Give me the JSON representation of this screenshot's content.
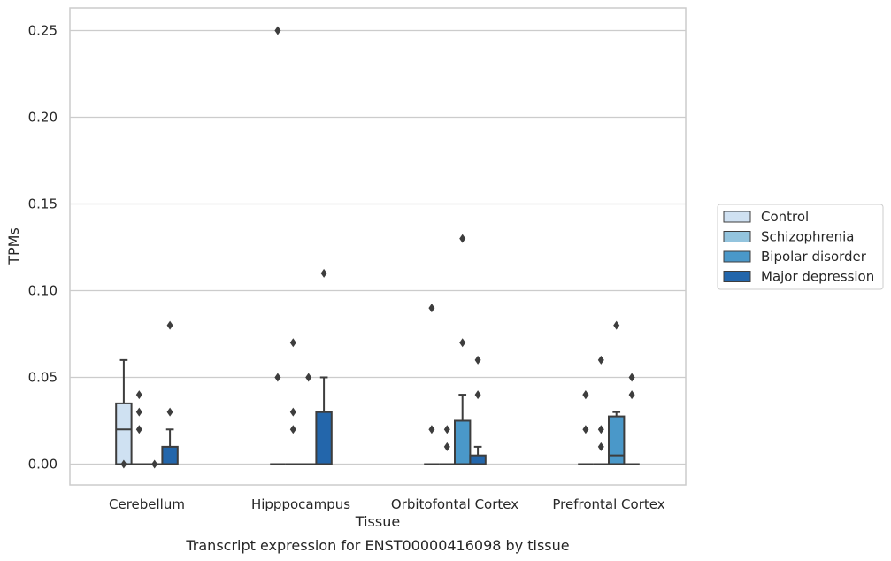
{
  "chart_data": {
    "type": "box",
    "xlabel": "Tissue",
    "ylabel": "TPMs",
    "caption": "Transcript expression for ENST00000416098 by tissue",
    "ylim": [
      -0.012,
      0.263
    ],
    "yticks": [
      0.0,
      0.05,
      0.1,
      0.15,
      0.2,
      0.25
    ],
    "ytick_labels": [
      "0.00",
      "0.05",
      "0.10",
      "0.15",
      "0.20",
      "0.25"
    ],
    "grid": true,
    "legend_position": "right",
    "categories": [
      "Cerebellum",
      "Hipppocampus",
      "Orbitofontal Cortex",
      "Prefrontal Cortex"
    ],
    "series": [
      {
        "name": "Control",
        "color": "#cfe1f2",
        "boxes": [
          {
            "q1": 0.0,
            "median": 0.02,
            "q3": 0.035,
            "whislo": 0.0,
            "whishi": 0.06,
            "fliers": [
              0.0
            ]
          },
          {
            "q1": 0.0,
            "median": 0.0,
            "q3": 0.0,
            "whislo": 0.0,
            "whishi": 0.0,
            "fliers": [
              0.25,
              0.05
            ]
          },
          {
            "q1": 0.0,
            "median": 0.0,
            "q3": 0.0,
            "whislo": 0.0,
            "whishi": 0.0,
            "fliers": [
              0.09,
              0.02
            ]
          },
          {
            "q1": 0.0,
            "median": 0.0,
            "q3": 0.0,
            "whislo": 0.0,
            "whishi": 0.0,
            "fliers": [
              0.04,
              0.04,
              0.02
            ]
          }
        ]
      },
      {
        "name": "Schizophrenia",
        "color": "#93c4de",
        "boxes": [
          {
            "q1": 0.0,
            "median": 0.0,
            "q3": 0.0,
            "whislo": 0.0,
            "whishi": 0.0,
            "fliers": [
              0.04,
              0.03,
              0.02
            ]
          },
          {
            "q1": 0.0,
            "median": 0.0,
            "q3": 0.0,
            "whislo": 0.0,
            "whishi": 0.0,
            "fliers": [
              0.07,
              0.03,
              0.02
            ]
          },
          {
            "q1": 0.0,
            "median": 0.0,
            "q3": 0.0,
            "whislo": 0.0,
            "whishi": 0.0,
            "fliers": [
              0.02,
              0.01
            ]
          },
          {
            "q1": 0.0,
            "median": 0.0,
            "q3": 0.0,
            "whislo": 0.0,
            "whishi": 0.0,
            "fliers": [
              0.06,
              0.02,
              0.01
            ]
          }
        ]
      },
      {
        "name": "Bipolar disorder",
        "color": "#4a98c9",
        "boxes": [
          {
            "q1": 0.0,
            "median": 0.0,
            "q3": 0.0,
            "whislo": 0.0,
            "whishi": 0.0,
            "fliers": [
              0.0
            ]
          },
          {
            "q1": 0.0,
            "median": 0.0,
            "q3": 0.0,
            "whislo": 0.0,
            "whishi": 0.0,
            "fliers": [
              0.05
            ]
          },
          {
            "q1": 0.0,
            "median": 0.0,
            "q3": 0.025,
            "whislo": 0.0,
            "whishi": 0.04,
            "fliers": [
              0.13,
              0.07
            ]
          },
          {
            "q1": 0.0,
            "median": 0.005,
            "q3": 0.0275,
            "whislo": 0.0,
            "whishi": 0.03,
            "fliers": [
              0.08
            ]
          }
        ]
      },
      {
        "name": "Major depression",
        "color": "#2366ab",
        "boxes": [
          {
            "q1": 0.0,
            "median": 0.0,
            "q3": 0.01,
            "whislo": 0.0,
            "whishi": 0.02,
            "fliers": [
              0.08,
              0.03
            ]
          },
          {
            "q1": 0.0,
            "median": 0.0,
            "q3": 0.03,
            "whislo": 0.0,
            "whishi": 0.05,
            "fliers": [
              0.11
            ]
          },
          {
            "q1": 0.0,
            "median": 0.0,
            "q3": 0.005,
            "whislo": 0.0,
            "whishi": 0.01,
            "fliers": [
              0.06,
              0.04
            ]
          },
          {
            "q1": 0.0,
            "median": 0.0,
            "q3": 0.0,
            "whislo": 0.0,
            "whishi": 0.0,
            "fliers": [
              0.05,
              0.04
            ]
          }
        ]
      }
    ]
  }
}
